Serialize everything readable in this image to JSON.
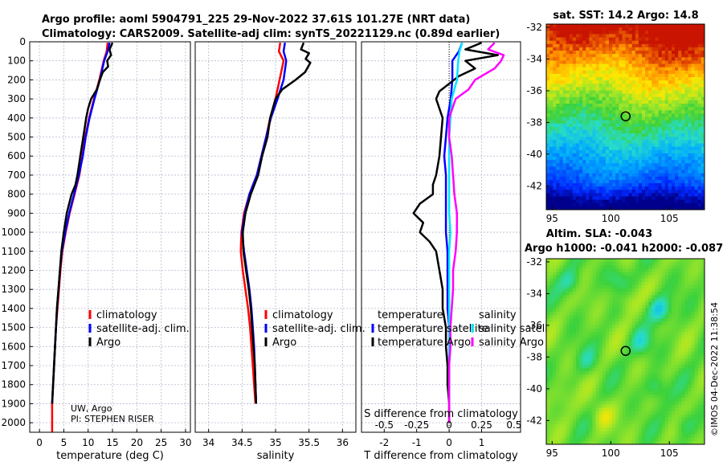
{
  "figure": {
    "title_line1": "Argo profile: aoml 5904791_225 29-Nov-2022 37.61S 101.27E (NRT data)",
    "title_line2": "Climatology: CARS2009. Satellite-adj clim: synTS_20221129.nc (0.89d earlier)",
    "annotation_institution": "UW, Argo",
    "annotation_pi": "PI: STEPHEN RISER",
    "credit": "©IMOS 04-Dec-2022 11:38:54"
  },
  "colors": {
    "climatology": "#ff0000",
    "satellite": "#0000ff",
    "argo": "#000000",
    "argo_salinity_diff": "#ff00ff",
    "satellite_salinity_diff": "#00e5ff",
    "grid": "#b8b8d0",
    "marker": "#000000"
  },
  "chart_data": [
    {
      "type": "line",
      "id": "temperature",
      "xlabel": "temperature (deg C)",
      "ylabel": "",
      "xlim": [
        -2,
        31
      ],
      "ylim": [
        2050,
        0
      ],
      "xticks": [
        0,
        5,
        10,
        15,
        20,
        25,
        30
      ],
      "xtick_labels": [
        "0",
        "5",
        "10",
        "15",
        "20",
        "25",
        "30"
      ],
      "yticks": [
        0,
        100,
        200,
        300,
        400,
        500,
        600,
        700,
        800,
        900,
        1000,
        1100,
        1200,
        1300,
        1400,
        1500,
        1600,
        1700,
        1800,
        1900,
        2000
      ],
      "ytick_labels": [
        "0",
        "100",
        "200",
        "300",
        "400",
        "500",
        "600",
        "700",
        "800",
        "900",
        "1000",
        "1100",
        "1200",
        "1300",
        "1400",
        "1500",
        "1600",
        "1700",
        "1800",
        "1900",
        "2000"
      ],
      "grid": true,
      "legend_position": "lower-center",
      "series": [
        {
          "name": "climatology",
          "color_key": "climatology",
          "x": [
            14.0,
            13.8,
            13.2,
            12.3,
            11.2,
            10.2,
            9.4,
            8.8,
            8.2,
            7.2,
            6.2,
            5.4,
            4.7,
            4.3,
            4.0,
            3.7,
            3.4,
            3.2,
            3.0,
            2.8,
            2.6,
            2.6
          ],
          "y": [
            5,
            50,
            100,
            200,
            300,
            400,
            500,
            600,
            700,
            800,
            900,
            1000,
            1100,
            1200,
            1300,
            1400,
            1500,
            1600,
            1700,
            1800,
            1900,
            2050
          ]
        },
        {
          "name": "satellite-adj. clim.",
          "color_key": "satellite",
          "x": [
            14.4,
            14.0,
            13.3,
            12.4,
            11.3,
            10.3,
            9.5,
            8.9,
            8.1,
            7.1,
            6.1,
            5.3,
            4.6,
            4.2,
            3.9,
            3.6,
            3.4,
            3.2,
            3.0,
            2.8,
            2.6
          ],
          "y": [
            5,
            50,
            100,
            200,
            300,
            400,
            500,
            600,
            700,
            800,
            900,
            1000,
            1100,
            1200,
            1300,
            1400,
            1500,
            1600,
            1700,
            1800,
            1900
          ]
        },
        {
          "name": "Argo",
          "color_key": "argo",
          "x": [
            15.0,
            14.4,
            14.7,
            13.9,
            14.1,
            13.0,
            12.4,
            11.8,
            10.6,
            10.0,
            9.6,
            9.0,
            8.4,
            7.8,
            7.4,
            6.6,
            5.6,
            5.0,
            4.5,
            4.2,
            3.9,
            3.6,
            3.4,
            3.2,
            3.0,
            2.8,
            2.6
          ],
          "y": [
            5,
            40,
            70,
            100,
            130,
            160,
            200,
            250,
            300,
            350,
            400,
            500,
            600,
            700,
            750,
            800,
            900,
            1000,
            1100,
            1200,
            1300,
            1400,
            1500,
            1600,
            1700,
            1800,
            1900
          ]
        }
      ]
    },
    {
      "type": "line",
      "id": "salinity",
      "xlabel": "salinity",
      "ylabel": "",
      "xlim": [
        33.8,
        36.2
      ],
      "ylim": [
        2050,
        0
      ],
      "xticks": [
        34,
        34.5,
        35,
        35.5,
        36
      ],
      "xtick_labels": [
        "34",
        "34.5",
        "35",
        "35.5",
        "36"
      ],
      "grid": true,
      "legend_position": "lower-center",
      "series": [
        {
          "name": "climatology",
          "color_key": "climatology",
          "x": [
            35.07,
            35.05,
            35.12,
            35.06,
            35.0,
            34.92,
            34.86,
            34.79,
            34.72,
            34.61,
            34.53,
            34.49,
            34.48,
            34.51,
            34.55,
            34.59,
            34.62,
            34.64,
            34.66,
            34.68,
            34.7
          ],
          "y": [
            5,
            50,
            100,
            200,
            300,
            400,
            500,
            600,
            700,
            800,
            900,
            1000,
            1100,
            1200,
            1300,
            1400,
            1500,
            1600,
            1700,
            1800,
            1900
          ]
        },
        {
          "name": "satellite-adj. clim.",
          "color_key": "satellite",
          "x": [
            35.14,
            35.12,
            35.16,
            35.12,
            35.03,
            34.93,
            34.86,
            34.79,
            34.72,
            34.61,
            34.54,
            34.5,
            34.53,
            34.57,
            34.61,
            34.64,
            34.66,
            34.68,
            34.69,
            34.7,
            34.71
          ],
          "y": [
            5,
            50,
            100,
            200,
            300,
            400,
            500,
            600,
            700,
            800,
            900,
            1000,
            1100,
            1200,
            1300,
            1400,
            1500,
            1600,
            1700,
            1800,
            1900
          ]
        },
        {
          "name": "Argo",
          "color_key": "argo",
          "x": [
            35.42,
            35.38,
            35.5,
            35.45,
            35.52,
            35.44,
            35.3,
            35.1,
            35.0,
            34.92,
            34.88,
            34.8,
            34.74,
            34.63,
            34.55,
            34.51,
            34.52,
            34.56,
            34.6,
            34.63,
            34.65,
            34.67,
            34.69,
            34.7,
            34.71
          ],
          "y": [
            5,
            40,
            60,
            90,
            110,
            160,
            200,
            250,
            300,
            400,
            500,
            600,
            700,
            800,
            900,
            1000,
            1100,
            1200,
            1300,
            1400,
            1500,
            1600,
            1700,
            1800,
            1900
          ]
        }
      ]
    },
    {
      "type": "line",
      "id": "differences",
      "xlabel": "T difference from climatology",
      "secondary_xlabel": "S difference from climatology",
      "xlim": [
        -2.7,
        2.2
      ],
      "ylim": [
        2050,
        0
      ],
      "xticks": [
        -2,
        -1,
        0,
        1
      ],
      "xtick_labels": [
        "-2",
        "-1",
        "0",
        "1"
      ],
      "secondary_xticks": [
        -0.5,
        -0.25,
        0,
        0.25,
        0.5
      ],
      "secondary_xtick_labels": [
        "-0.5",
        "-0.25",
        "0",
        "0.25",
        "0.5"
      ],
      "secondary_scale": 0.25,
      "grid": true,
      "legend_titles": [
        "temperature",
        "salinity"
      ],
      "series": [
        {
          "name": "temperature satellite",
          "color_key": "satellite",
          "x": [
            0.4,
            0.3,
            0.1,
            0.1,
            0.05,
            -0.05,
            -0.1,
            -0.15,
            -0.1,
            -0.1,
            -0.1,
            -0.1,
            -0.05,
            -0.05,
            -0.05,
            -0.05,
            0,
            0,
            0,
            0,
            0
          ],
          "y": [
            5,
            50,
            100,
            200,
            300,
            400,
            500,
            600,
            700,
            800,
            900,
            1000,
            1100,
            1200,
            1300,
            1400,
            1500,
            1600,
            1700,
            1800,
            1900
          ]
        },
        {
          "name": "temperature Argo",
          "color_key": "argo",
          "x": [
            1.0,
            0.5,
            1.5,
            0.5,
            0.8,
            0.3,
            0.0,
            -0.3,
            -0.4,
            -0.2,
            -0.25,
            -0.3,
            -0.4,
            -0.5,
            -0.5,
            -0.9,
            -1.1,
            -0.8,
            -0.9,
            -0.6,
            -0.4,
            -0.3,
            -0.2,
            -0.2,
            -0.1,
            -0.1,
            -0.05,
            -0.05,
            0,
            0
          ],
          "y": [
            5,
            40,
            70,
            100,
            140,
            180,
            220,
            260,
            300,
            400,
            500,
            600,
            700,
            750,
            800,
            850,
            900,
            950,
            1000,
            1050,
            1100,
            1200,
            1300,
            1400,
            1500,
            1600,
            1700,
            1800,
            1900,
            2000
          ]
        },
        {
          "name": "salinity satellite",
          "color_key": "satellite_salinity_diff",
          "x": [
            0.1,
            0.08,
            0.07,
            0.06,
            0.02,
            0.01,
            0.0,
            0.0,
            0.0,
            0.0,
            0.0,
            0.01,
            0.0,
            0.0,
            0.0,
            0.0,
            0.0,
            0.0,
            0.0,
            0.0,
            0.0
          ],
          "y": [
            5,
            50,
            100,
            200,
            300,
            400,
            500,
            600,
            700,
            800,
            900,
            1000,
            1100,
            1200,
            1300,
            1400,
            1500,
            1600,
            1700,
            1800,
            1900
          ]
        },
        {
          "name": "salinity Argo",
          "color_key": "argo_salinity_diff",
          "x": [
            0.35,
            0.3,
            0.42,
            0.4,
            0.35,
            0.2,
            0.15,
            0.05,
            0.0,
            0.0,
            0.02,
            0.03,
            0.04,
            0.06,
            0.06,
            0.05,
            0.03,
            0.03,
            0.02,
            0.01,
            0.01,
            0.0,
            0.0,
            0.0,
            0.0
          ],
          "y": [
            5,
            40,
            70,
            100,
            140,
            200,
            250,
            300,
            400,
            500,
            600,
            700,
            800,
            900,
            1000,
            1100,
            1200,
            1300,
            1400,
            1500,
            1600,
            1700,
            1800,
            1900,
            2000
          ]
        }
      ]
    },
    {
      "type": "heatmap",
      "id": "sst-map",
      "title": "sat. SST: 14.2 Argo: 14.8",
      "xlim": [
        94.5,
        108
      ],
      "ylim": [
        -43.5,
        -31.8
      ],
      "xticks": [
        95,
        100,
        105
      ],
      "xtick_labels": [
        "95",
        "100",
        "105"
      ],
      "yticks": [
        -32,
        -34,
        -36,
        -38,
        -40,
        -42
      ],
      "ytick_labels": [
        "-32",
        "-34",
        "-36",
        "-38",
        "-40",
        "-42"
      ],
      "marker": {
        "lon": 101.27,
        "lat": -37.61
      }
    },
    {
      "type": "heatmap",
      "id": "sla-map",
      "title": "Altim. SLA: -0.043",
      "subtitle": "Argo h1000: -0.041 h2000: -0.087",
      "xlim": [
        94.5,
        108
      ],
      "ylim": [
        -43.5,
        -31.8
      ],
      "xticks": [
        95,
        100,
        105
      ],
      "xtick_labels": [
        "95",
        "100",
        "105"
      ],
      "yticks": [
        -32,
        -34,
        -36,
        -38,
        -40,
        -42
      ],
      "ytick_labels": [
        "-32",
        "-34",
        "-36",
        "-38",
        "-40",
        "-42"
      ],
      "marker": {
        "lon": 101.27,
        "lat": -37.61
      }
    }
  ]
}
